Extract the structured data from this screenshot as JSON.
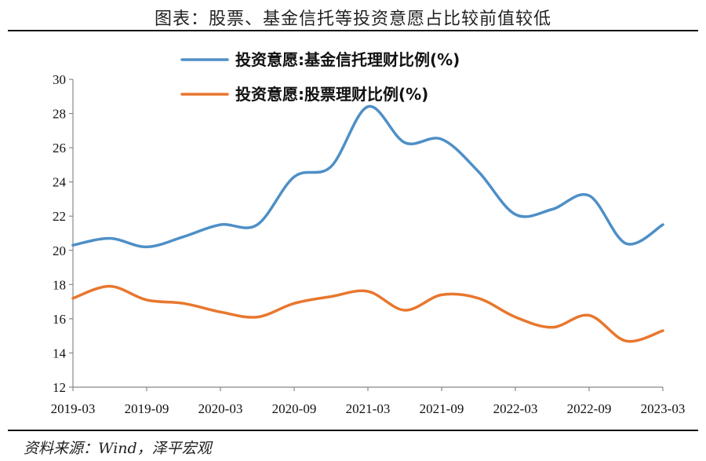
{
  "title": "图表：股票、基金信托等投资意愿占比较前值较低",
  "source": "资料来源：Wind，泽平宏观",
  "colors": {
    "trust": "#4e8fc7",
    "stock": "#e8772e",
    "axis": "#888888"
  },
  "chart_data": {
    "type": "line",
    "title": "图表：股票、基金信托等投资意愿占比较前值较低",
    "xlabel": "",
    "ylabel": "",
    "ylim": [
      12,
      30
    ],
    "yticks": [
      "12",
      "14",
      "16",
      "18",
      "20",
      "22",
      "24",
      "26",
      "28",
      "30"
    ],
    "xticks": [
      "2019-03",
      "2019-09",
      "2020-03",
      "2020-09",
      "2021-03",
      "2021-09",
      "2022-03",
      "2022-09",
      "2023-03"
    ],
    "x": [
      "2019-03",
      "2019-06",
      "2019-09",
      "2019-12",
      "2020-03",
      "2020-06",
      "2020-09",
      "2020-12",
      "2021-03",
      "2021-06",
      "2021-09",
      "2021-12",
      "2022-03",
      "2022-06",
      "2022-09",
      "2022-12",
      "2023-03"
    ],
    "legend_position": "top",
    "grid": false,
    "series": [
      {
        "name": "投资意愿:基金信托理财比例(%)",
        "values": [
          20.3,
          20.7,
          20.2,
          20.8,
          21.5,
          21.5,
          24.3,
          24.9,
          28.4,
          26.3,
          26.5,
          24.6,
          22.1,
          22.4,
          23.2,
          20.4,
          21.5
        ]
      },
      {
        "name": "投资意愿:股票理财比例(%)",
        "values": [
          17.2,
          17.9,
          17.1,
          16.9,
          16.4,
          16.1,
          16.9,
          17.3,
          17.6,
          16.5,
          17.4,
          17.2,
          16.1,
          15.5,
          16.2,
          14.7,
          15.3
        ]
      }
    ]
  }
}
